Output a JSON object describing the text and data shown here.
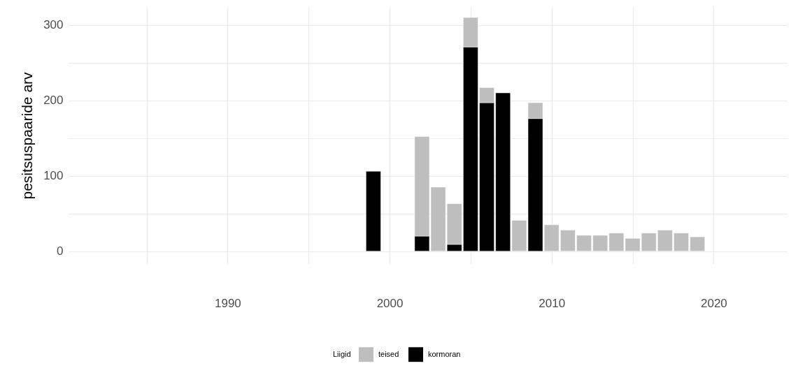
{
  "chart_data": {
    "type": "bar",
    "ylabel": "pesitsuspaaride arv",
    "legend_title": "Liigid",
    "stacked": true,
    "grid": true,
    "legend": "bottom",
    "x": [
      1999,
      2002,
      2003,
      2004,
      2005,
      2006,
      2007,
      2008,
      2009,
      2010,
      2011,
      2012,
      2013,
      2014,
      2015,
      2016,
      2017,
      2018,
      2019
    ],
    "series": [
      {
        "name": "kormoran",
        "color": "#000000",
        "values": [
          106,
          20,
          null,
          9,
          271,
          197,
          210,
          null,
          176,
          null,
          null,
          null,
          null,
          null,
          null,
          null,
          null,
          null,
          null
        ]
      },
      {
        "name": "teised",
        "color": "#bebebe",
        "values": [
          null,
          132,
          85,
          54,
          39,
          20,
          null,
          41,
          21,
          35,
          28,
          21,
          21,
          24,
          17,
          24,
          28,
          24,
          19
        ]
      }
    ],
    "xlim": [
      1980.4,
      2024.3
    ],
    "xticks": [
      {
        "value": 1985,
        "label": null
      },
      1990,
      {
        "value": 1995,
        "label": null
      },
      2000,
      {
        "value": 2005,
        "label": null
      },
      2010,
      {
        "value": 2015,
        "label": null
      },
      2020
    ],
    "ylim": [
      -17,
      324
    ],
    "yticks": [
      0,
      {
        "value": 50,
        "label": null
      },
      100,
      {
        "value": 150,
        "label": null
      },
      200,
      {
        "value": 250,
        "label": null
      },
      300
    ]
  }
}
